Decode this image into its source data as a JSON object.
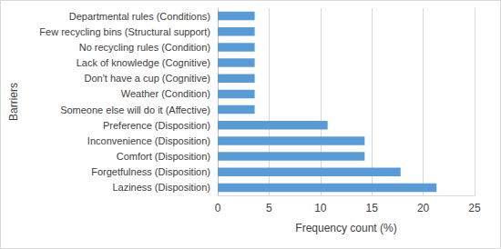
{
  "chart_data": {
    "type": "bar",
    "orientation": "horizontal",
    "x_label": "Frequency count (%)",
    "y_label": "Barriers",
    "categories": [
      "Departmental rules (Conditions)",
      "Few recycling bins (Structural support)",
      "No recycling rules (Condition)",
      "Lack of knowledge (Cognitive)",
      "Don't have a cup (Cognitive)",
      "Weather (Condition)",
      "Someone else will do it (Affective)",
      "Preference (Disposition)",
      "Inconvenience (Disposition)",
      "Comfort (Disposition)",
      "Forgetfulness (Disposition)",
      "Laziness (Disposition)"
    ],
    "values": [
      3.6,
      3.6,
      3.6,
      3.6,
      3.6,
      3.6,
      3.6,
      10.7,
      14.3,
      14.3,
      17.8,
      21.3
    ],
    "color": "#5b9bd5",
    "xlim": [
      0,
      25
    ],
    "xticks": [
      0,
      5,
      10,
      15,
      20,
      25
    ],
    "grid": true
  }
}
